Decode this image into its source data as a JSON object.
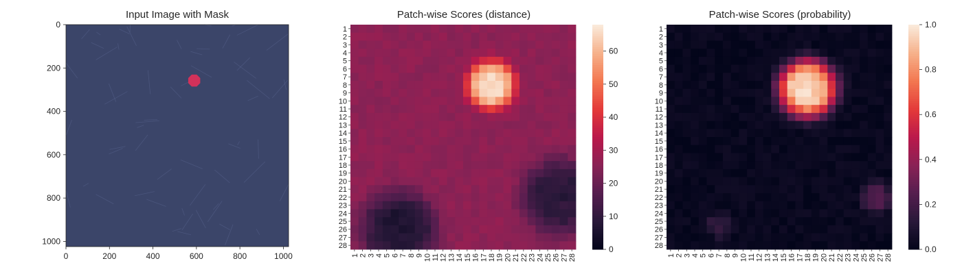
{
  "chart_data": [
    {
      "type": "image",
      "title": "Input Image with Mask",
      "xlim": [
        0,
        1024
      ],
      "ylim": [
        1024,
        0
      ],
      "xticks": [
        "0",
        "200",
        "400",
        "600",
        "800",
        "1000"
      ],
      "yticks": [
        "0",
        "200",
        "400",
        "600",
        "800",
        "1000"
      ],
      "image_description_color": "#3b4569",
      "mask": {
        "center_x": 590,
        "center_y": 258,
        "radius": 30,
        "color": "#d9305a"
      }
    },
    {
      "type": "heatmap",
      "title": "Patch-wise Scores (distance)",
      "rows": 28,
      "cols": 28,
      "tick_labels": [
        "1",
        "2",
        "3",
        "4",
        "5",
        "6",
        "7",
        "8",
        "9",
        "10",
        "11",
        "12",
        "13",
        "14",
        "15",
        "16",
        "17",
        "18",
        "19",
        "20",
        "21",
        "22",
        "23",
        "24",
        "25",
        "26",
        "27",
        "28"
      ],
      "colorbar": {
        "min": 0,
        "max": 68,
        "ticks": [
          "0",
          "10",
          "20",
          "30",
          "40",
          "50",
          "60"
        ]
      },
      "features": [
        {
          "row": 7.5,
          "col": 17.5,
          "peak": 68,
          "sigma": 1.9
        },
        {
          "row": 21.5,
          "col": 26.0,
          "peak": 8,
          "sigma": 3.0
        },
        {
          "row": 25.5,
          "col": 6.0,
          "peak": 6,
          "sigma": 3.0
        }
      ],
      "baseline": 26
    },
    {
      "type": "heatmap",
      "title": "Patch-wise Scores (probability)",
      "rows": 28,
      "cols": 28,
      "tick_labels": [
        "1",
        "2",
        "3",
        "4",
        "5",
        "6",
        "7",
        "8",
        "9",
        "10",
        "11",
        "12",
        "13",
        "14",
        "15",
        "16",
        "17",
        "18",
        "19",
        "20",
        "21",
        "22",
        "23",
        "24",
        "25",
        "26",
        "27",
        "28"
      ],
      "colorbar": {
        "min": 0,
        "max": 1,
        "ticks": [
          "0.0",
          "0.2",
          "0.4",
          "0.6",
          "0.8",
          "1.0"
        ]
      },
      "features": [
        {
          "row": 8.0,
          "col": 17.5,
          "peak": 1.0,
          "sigma": 2.3
        },
        {
          "row": 21.5,
          "col": 26.0,
          "peak": 0.25,
          "sigma": 1.2
        },
        {
          "row": 25.0,
          "col": 6.5,
          "peak": 0.15,
          "sigma": 1.0
        }
      ],
      "baseline": 0.02
    }
  ]
}
